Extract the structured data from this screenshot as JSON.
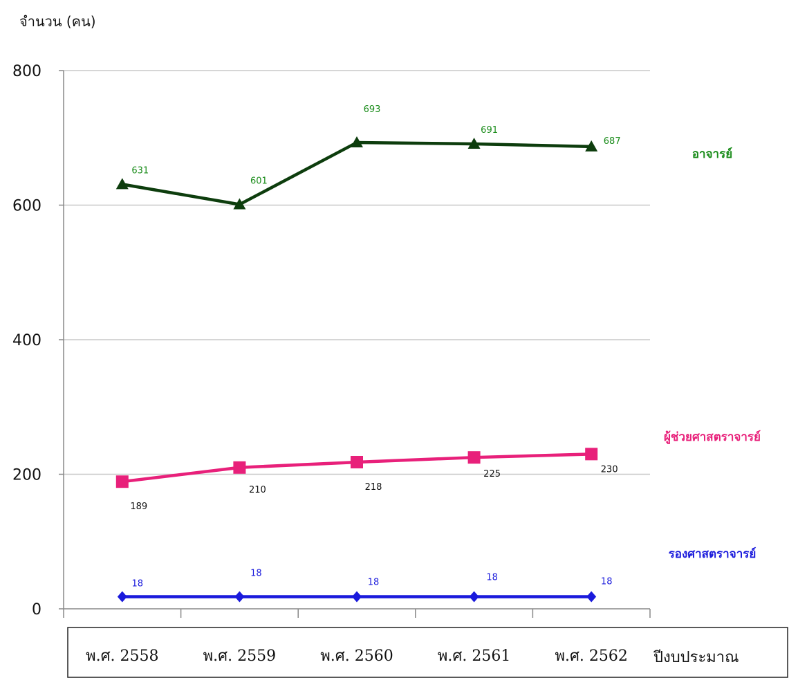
{
  "chart_data": {
    "type": "line",
    "ylabel": "จำนวน (คน)",
    "xlabel": "ปีงบประมาณ",
    "categories": [
      "พ.ศ. 2558",
      "พ.ศ. 2559",
      "พ.ศ. 2560",
      "พ.ศ. 2561",
      "พ.ศ. 2562"
    ],
    "ylim": [
      0,
      800
    ],
    "yticks": [
      "0",
      "200",
      "400",
      "600",
      "800"
    ],
    "grid": true,
    "legend_placement": "right",
    "series": [
      {
        "name": "อาจารย์",
        "values": [
          631,
          601,
          693,
          691,
          687
        ],
        "labels": [
          "631",
          "601",
          "693",
          "691",
          "687"
        ],
        "color": "#0d3d0d",
        "label_color": "#1a8c1a",
        "marker": "triangle"
      },
      {
        "name": "ผู้ช่วยศาสตราจารย์",
        "values": [
          189,
          210,
          218,
          225,
          230
        ],
        "labels": [
          "189",
          "210",
          "218",
          "225",
          "230"
        ],
        "color": "#e8207a",
        "label_color": "#e8207a",
        "marker": "square"
      },
      {
        "name": "รองศาสตราจารย์",
        "values": [
          18,
          18,
          18,
          18,
          18
        ],
        "labels": [
          "18",
          "18",
          "18",
          "18",
          "18"
        ],
        "color": "#1a1adc",
        "label_color": "#1a1adc",
        "marker": "diamond"
      }
    ]
  }
}
